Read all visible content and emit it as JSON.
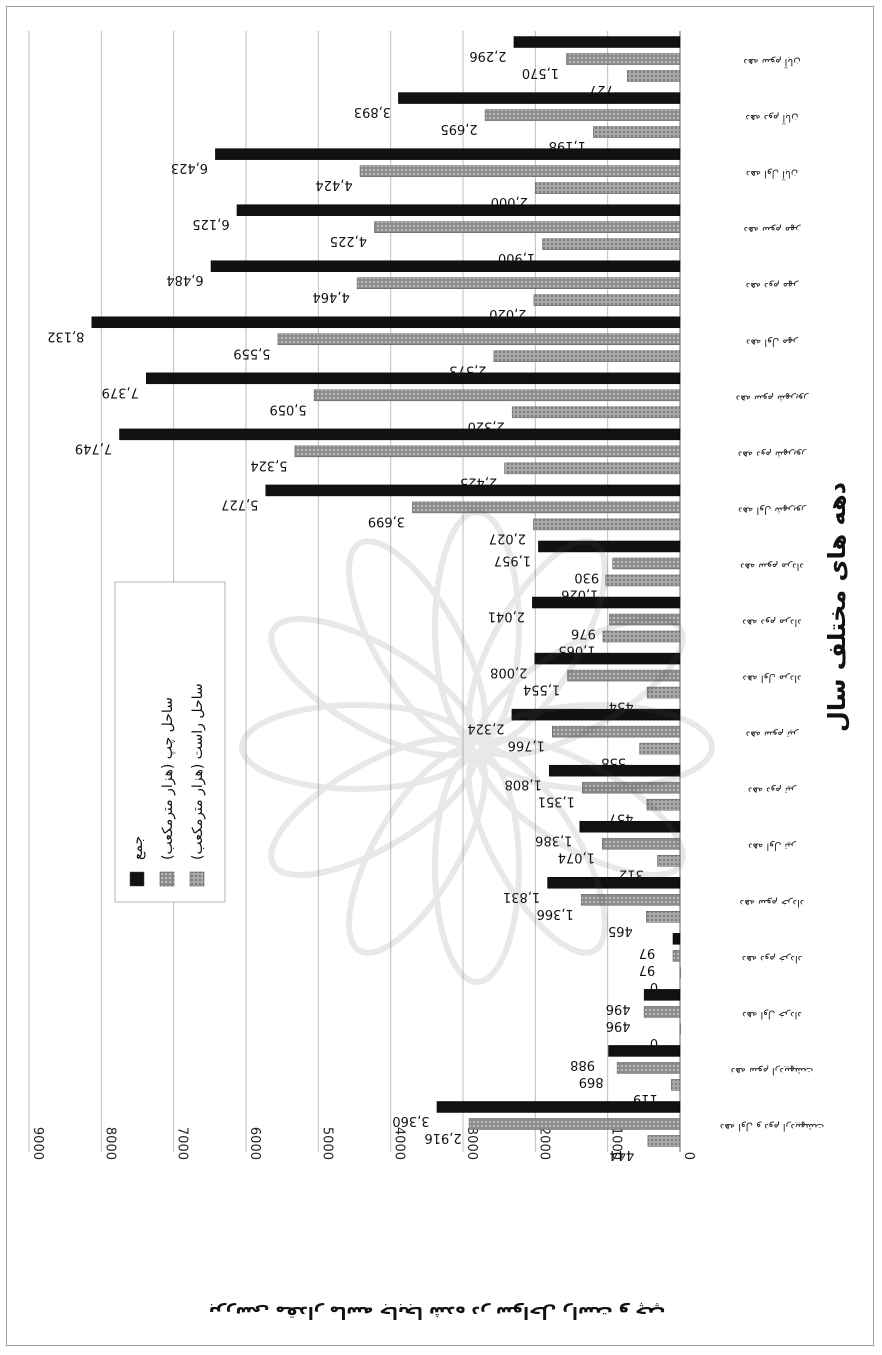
{
  "chart_data": {
    "type": "bar",
    "orientation": "horizontal",
    "title": "بررسی مقدار ماسه جابجا شده در سواحل راست و چپ",
    "xlabel": "",
    "ylabel": "دهه های مختلف سال",
    "ylim": [
      0,
      9000
    ],
    "ticks": [
      "0",
      "1000",
      "2000",
      "3000",
      "4000",
      "5000",
      "6000",
      "7000",
      "8000",
      "9000"
    ],
    "grid": true,
    "legend_position": "bottom-right",
    "categories": [
      "دهه اول و دوم اردیبهشت",
      "دهه سوم اردیبهشت",
      "دهه اول خرداد",
      "دهه دوم خرداد",
      "دهه سوم خرداد",
      "دهه اول تیر",
      "دهه دوم تیر",
      "دهه سوم تیر",
      "دهه اول مرداد",
      "دهه دوم مرداد",
      "دهه سوم مرداد",
      "دهه اول شهریور",
      "دهه دوم شهریور",
      "دهه سوم شهریور",
      "دهه اول مهر",
      "دهه دوم مهر",
      "دهه سوم مهر",
      "دهه اول آبان",
      "دهه دوم آبان",
      "دهه سوم آبان"
    ],
    "series": [
      {
        "name": "ساحل راست (هزار مترمکعب)",
        "values": [
          444,
          119,
          0,
          0,
          465,
          312,
          457,
          558,
          454,
          1065,
          1026,
          2027,
          2425,
          2320,
          2573,
          2020,
          1900,
          2000,
          1198,
          727
        ],
        "labels": [
          "444",
          "119",
          "0",
          "0",
          "465",
          "312",
          "457",
          "558",
          "454",
          "1,065",
          "1,026",
          "2,027",
          "2,425",
          "2,320",
          "2,573",
          "2,020",
          "1,900",
          "2,000",
          "1,198",
          "727"
        ]
      },
      {
        "name": "ساحل چپ (هزار مترمکعب)",
        "values": [
          2916,
          869,
          496,
          97,
          1366,
          1074,
          1351,
          1766,
          1554,
          976,
          930,
          3699,
          5324,
          5059,
          5559,
          4464,
          4225,
          4424,
          2695,
          1570
        ],
        "labels": [
          "2,916",
          "869",
          "496",
          "97",
          "1,366",
          "1,074",
          "1,351",
          "1,766",
          "1,554",
          "976",
          "930",
          "3,699",
          "5,324",
          "5,059",
          "5,559",
          "4,464",
          "4,225",
          "4,424",
          "2,695",
          "1,570"
        ]
      },
      {
        "name": "جمع",
        "values": [
          3360,
          988,
          496,
          97,
          1831,
          1386,
          1808,
          2324,
          2008,
          2041,
          1957,
          5727,
          7749,
          7379,
          8132,
          6484,
          6125,
          6423,
          3893,
          2296
        ],
        "labels": [
          "3,360",
          "988",
          "496",
          "97",
          "1,831",
          "1,386",
          "1,808",
          "2,324",
          "2,008",
          "2,041",
          "1,957",
          "5,727",
          "7,749",
          "7,379",
          "8,132",
          "6,484",
          "6,125",
          "6,423",
          "3,893",
          "2,296"
        ]
      }
    ],
    "colors": [
      "#9c9c9c",
      "#8a8a8a",
      "#111111"
    ]
  }
}
